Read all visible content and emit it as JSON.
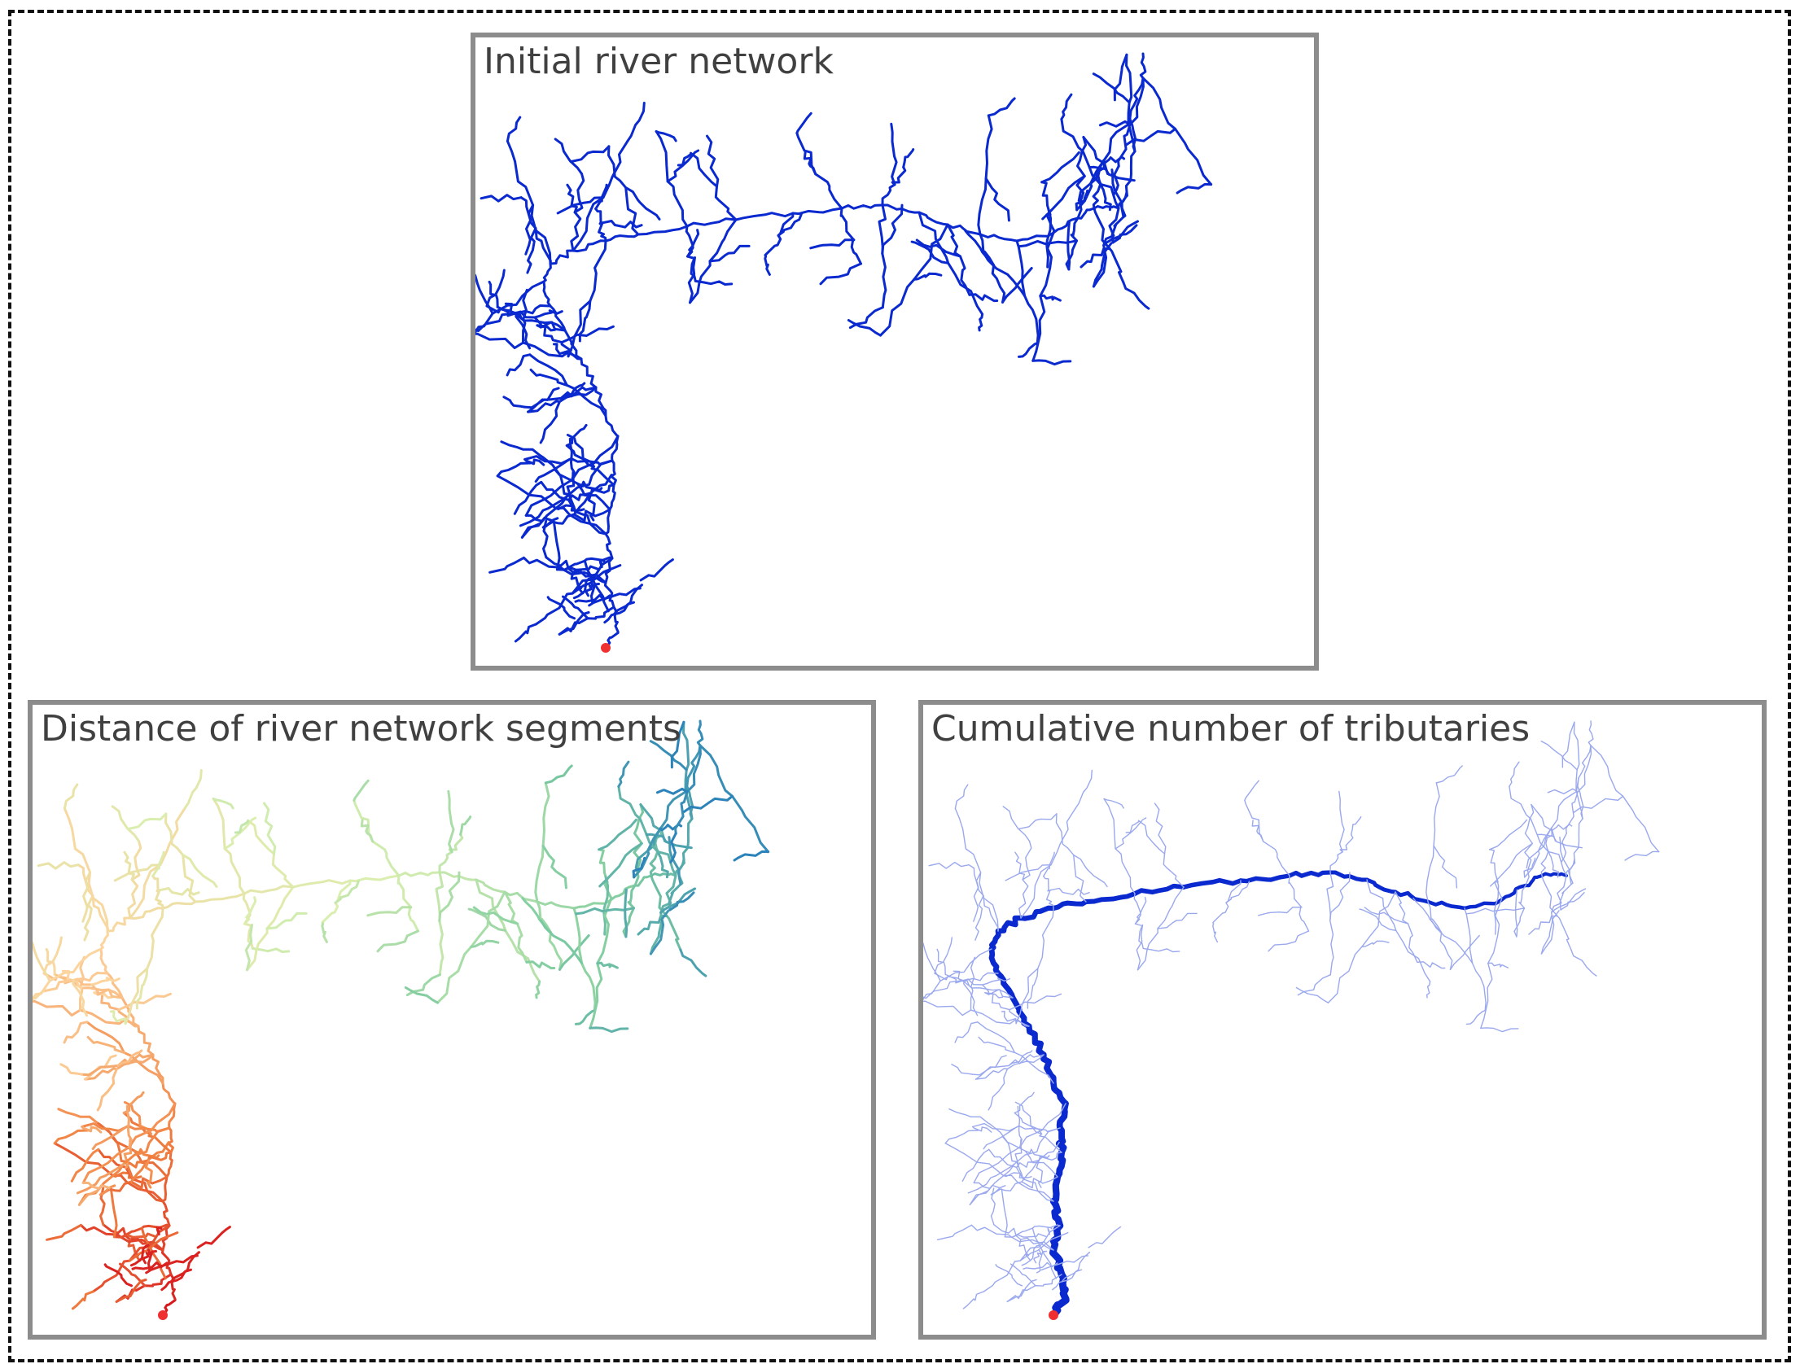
{
  "panels": [
    {
      "title": "Initial river network"
    },
    {
      "title": "Distance of river network segments"
    },
    {
      "title": "Cumulative number of tributaries"
    }
  ],
  "colors": {
    "network": "#0a2ad0",
    "outlet": "#f03030",
    "frame": "#8c8c8c",
    "distance_gradient": [
      "#d7191c",
      "#f08040",
      "#fdd49e",
      "#d9efb0",
      "#7ccba0",
      "#2b83ba"
    ],
    "tributary_main": "#0a2ad0",
    "tributary_faint": "#9aa8ee"
  }
}
